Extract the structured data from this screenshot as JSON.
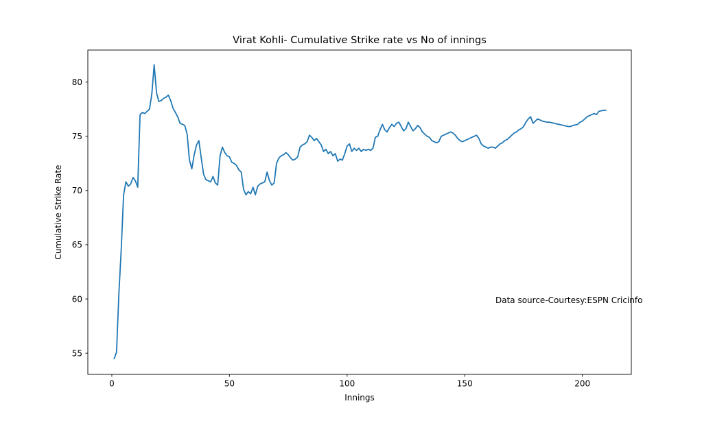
{
  "chart_data": {
    "type": "line",
    "title": "Virat Kohli- Cumulative Strike rate vs No of innings",
    "xlabel": "Innings",
    "ylabel": "Cumulative Strike Rate",
    "annotation": "Data source-Courtesy:ESPN Cricinfo",
    "grid": false,
    "legend_position": "none",
    "xlim": [
      -10.2,
      220.8
    ],
    "ylim": [
      53.05,
      82.95
    ],
    "x_ticks": [
      0,
      50,
      100,
      150,
      200
    ],
    "y_ticks": [
      55,
      60,
      65,
      70,
      75,
      80
    ],
    "series": [
      {
        "name": "Cumulative Strike Rate",
        "color": "#1f77b4",
        "x": [
          1,
          2,
          3,
          4,
          5,
          6,
          7,
          8,
          9,
          10,
          11,
          12,
          13,
          14,
          15,
          16,
          17,
          18,
          19,
          20,
          21,
          22,
          23,
          24,
          25,
          26,
          27,
          28,
          29,
          30,
          31,
          32,
          33,
          34,
          35,
          36,
          37,
          38,
          39,
          40,
          41,
          42,
          43,
          44,
          45,
          46,
          47,
          48,
          49,
          50,
          51,
          52,
          53,
          54,
          55,
          56,
          57,
          58,
          59,
          60,
          61,
          62,
          63,
          64,
          65,
          66,
          67,
          68,
          69,
          70,
          71,
          72,
          73,
          74,
          75,
          76,
          77,
          78,
          79,
          80,
          81,
          82,
          83,
          84,
          85,
          86,
          87,
          88,
          89,
          90,
          91,
          92,
          93,
          94,
          95,
          96,
          97,
          98,
          99,
          100,
          101,
          102,
          103,
          104,
          105,
          106,
          107,
          108,
          109,
          110,
          111,
          112,
          113,
          114,
          115,
          116,
          117,
          118,
          119,
          120,
          121,
          122,
          123,
          124,
          125,
          126,
          127,
          128,
          129,
          130,
          131,
          132,
          133,
          134,
          135,
          136,
          137,
          138,
          139,
          140,
          141,
          142,
          143,
          144,
          145,
          146,
          147,
          148,
          149,
          150,
          151,
          152,
          153,
          154,
          155,
          156,
          157,
          158,
          159,
          160,
          161,
          162,
          163,
          164,
          165,
          166,
          167,
          168,
          169,
          170,
          171,
          172,
          173,
          174,
          175,
          176,
          177,
          178,
          179,
          180,
          181,
          182,
          183,
          184,
          185,
          186,
          187,
          188,
          189,
          190,
          191,
          192,
          193,
          194,
          195,
          196,
          197,
          198,
          199,
          200,
          201,
          202,
          203,
          204,
          205,
          206,
          207,
          208,
          209,
          210
        ],
        "y": [
          54.5,
          55.1,
          60.5,
          64.6,
          69.6,
          70.8,
          70.4,
          70.6,
          71.2,
          70.9,
          70.3,
          77.0,
          77.2,
          77.1,
          77.3,
          77.5,
          78.9,
          81.6,
          79.0,
          78.2,
          78.3,
          78.5,
          78.6,
          78.8,
          78.3,
          77.6,
          77.2,
          76.8,
          76.2,
          76.1,
          76.0,
          75.2,
          72.8,
          72.0,
          73.3,
          74.2,
          74.6,
          73.0,
          71.5,
          71.0,
          70.9,
          70.8,
          71.3,
          70.7,
          70.5,
          73.2,
          74.0,
          73.5,
          73.2,
          73.1,
          72.6,
          72.5,
          72.3,
          71.9,
          71.7,
          70.1,
          69.6,
          69.9,
          69.7,
          70.3,
          69.6,
          70.4,
          70.6,
          70.7,
          70.8,
          71.7,
          70.9,
          70.5,
          70.7,
          72.5,
          73.0,
          73.2,
          73.3,
          73.5,
          73.3,
          73.0,
          72.8,
          72.9,
          73.1,
          74.0,
          74.2,
          74.3,
          74.5,
          75.1,
          74.9,
          74.6,
          74.8,
          74.5,
          74.2,
          73.6,
          73.8,
          73.4,
          73.6,
          73.2,
          73.4,
          72.7,
          72.9,
          72.8,
          73.4,
          74.1,
          74.3,
          73.6,
          73.9,
          73.7,
          73.9,
          73.6,
          73.8,
          73.7,
          73.8,
          73.7,
          73.9,
          74.9,
          75.0,
          75.6,
          76.1,
          75.6,
          75.4,
          75.8,
          76.1,
          75.9,
          76.2,
          76.3,
          75.9,
          75.5,
          75.7,
          76.3,
          75.9,
          75.5,
          75.7,
          76.0,
          75.8,
          75.4,
          75.2,
          75.0,
          74.9,
          74.6,
          74.5,
          74.4,
          74.5,
          75.0,
          75.1,
          75.2,
          75.3,
          75.4,
          75.3,
          75.1,
          74.8,
          74.6,
          74.5,
          74.6,
          74.7,
          74.8,
          74.9,
          75.0,
          75.1,
          74.8,
          74.3,
          74.1,
          74.0,
          73.9,
          74.0,
          74.0,
          73.9,
          74.1,
          74.3,
          74.4,
          74.6,
          74.7,
          74.9,
          75.1,
          75.3,
          75.4,
          75.6,
          75.7,
          75.9,
          76.3,
          76.6,
          76.8,
          76.2,
          76.4,
          76.6,
          76.5,
          76.4,
          76.35,
          76.3,
          76.3,
          76.25,
          76.2,
          76.15,
          76.1,
          76.05,
          76.0,
          75.95,
          75.9,
          75.9,
          76.0,
          76.05,
          76.1,
          76.3,
          76.4,
          76.6,
          76.8,
          76.9,
          77.0,
          77.1,
          77.0,
          77.3,
          77.35,
          77.4,
          77.4
        ]
      }
    ],
    "colors": {
      "line": "#1f77b4",
      "spine": "#1a1a1a",
      "text": "#000000",
      "background": "#ffffff"
    }
  }
}
